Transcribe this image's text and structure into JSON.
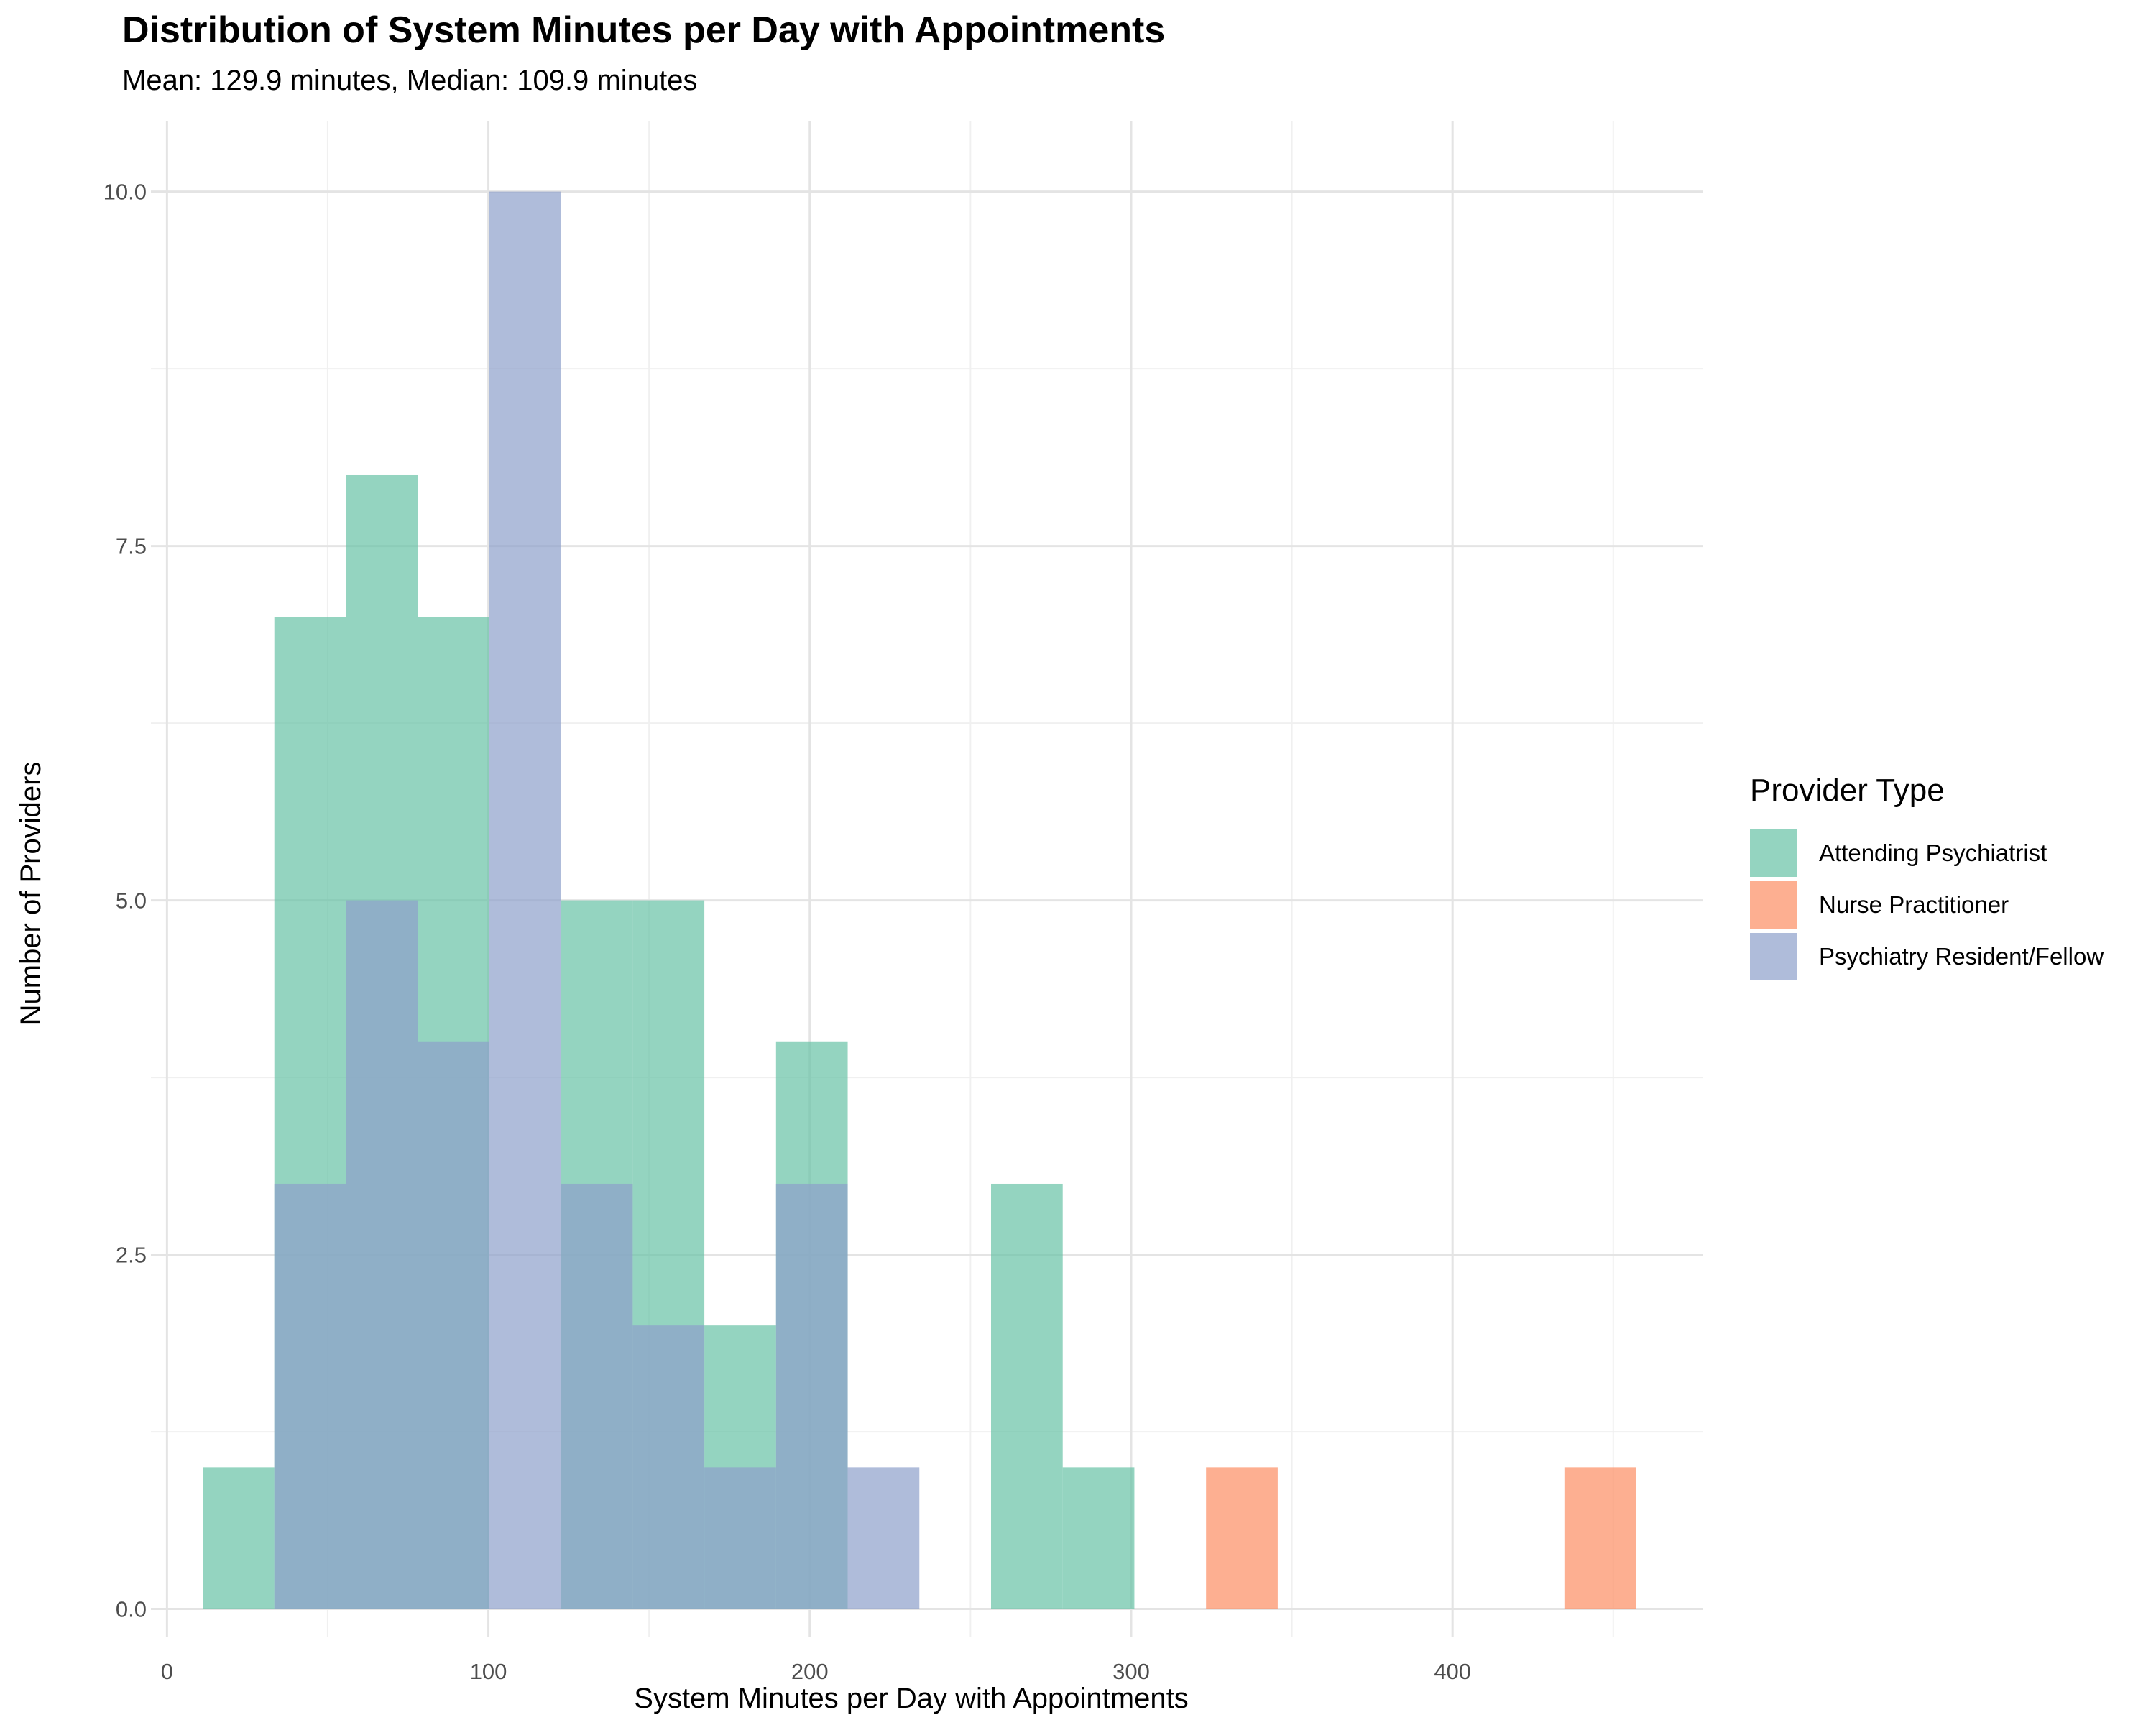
{
  "title": "Distribution of System Minutes per Day with Appointments",
  "subtitle": "Mean: 129.9 minutes, Median: 109.9 minutes",
  "chart_data": {
    "type": "bar",
    "subtype": "overlaid histogram",
    "title": "Distribution of System Minutes per Day with Appointments",
    "subtitle": "Mean: 129.9 minutes, Median: 109.9 minutes",
    "xlabel": "System Minutes per Day with Appointments",
    "ylabel": "Number of Providers",
    "xlim": [
      -5,
      478
    ],
    "ylim": [
      -0.2,
      10.5
    ],
    "x_ticks": [
      0,
      100,
      200,
      300,
      400
    ],
    "y_ticks": [
      0.0,
      2.5,
      5.0,
      7.5,
      10.0
    ],
    "y_tick_labels": [
      "0.0",
      "2.5",
      "5.0",
      "7.5",
      "10.0"
    ],
    "grid": true,
    "legend": {
      "title": "Provider Type",
      "position": "right"
    },
    "series": [
      {
        "name": "Attending Psychiatrist",
        "color": "#66C2A5",
        "bins": [
          {
            "x0": 11.1,
            "x1": 33.4,
            "count": 1
          },
          {
            "x0": 33.4,
            "x1": 55.7,
            "count": 7
          },
          {
            "x0": 55.7,
            "x1": 78.0,
            "count": 8
          },
          {
            "x0": 78.0,
            "x1": 100.3,
            "count": 7
          },
          {
            "x0": 122.6,
            "x1": 144.9,
            "count": 5
          },
          {
            "x0": 144.9,
            "x1": 167.2,
            "count": 5
          },
          {
            "x0": 167.2,
            "x1": 189.5,
            "count": 2
          },
          {
            "x0": 189.5,
            "x1": 211.8,
            "count": 4
          },
          {
            "x0": 256.4,
            "x1": 278.7,
            "count": 3
          },
          {
            "x0": 278.7,
            "x1": 301.0,
            "count": 1
          }
        ]
      },
      {
        "name": "Nurse Practitioner",
        "color": "#FC8D62",
        "bins": [
          {
            "x0": 323.3,
            "x1": 345.6,
            "count": 1
          },
          {
            "x0": 434.8,
            "x1": 457.1,
            "count": 1
          }
        ]
      },
      {
        "name": "Psychiatry Resident/Fellow",
        "color": "#8DA0CB",
        "bins": [
          {
            "x0": 33.4,
            "x1": 55.7,
            "count": 3
          },
          {
            "x0": 55.7,
            "x1": 78.0,
            "count": 5
          },
          {
            "x0": 78.0,
            "x1": 100.3,
            "count": 4
          },
          {
            "x0": 100.3,
            "x1": 122.6,
            "count": 10
          },
          {
            "x0": 122.6,
            "x1": 144.9,
            "count": 3
          },
          {
            "x0": 144.9,
            "x1": 167.2,
            "count": 2
          },
          {
            "x0": 167.2,
            "x1": 189.5,
            "count": 1
          },
          {
            "x0": 189.5,
            "x1": 211.8,
            "count": 3
          },
          {
            "x0": 211.8,
            "x1": 234.1,
            "count": 1
          }
        ]
      }
    ]
  }
}
